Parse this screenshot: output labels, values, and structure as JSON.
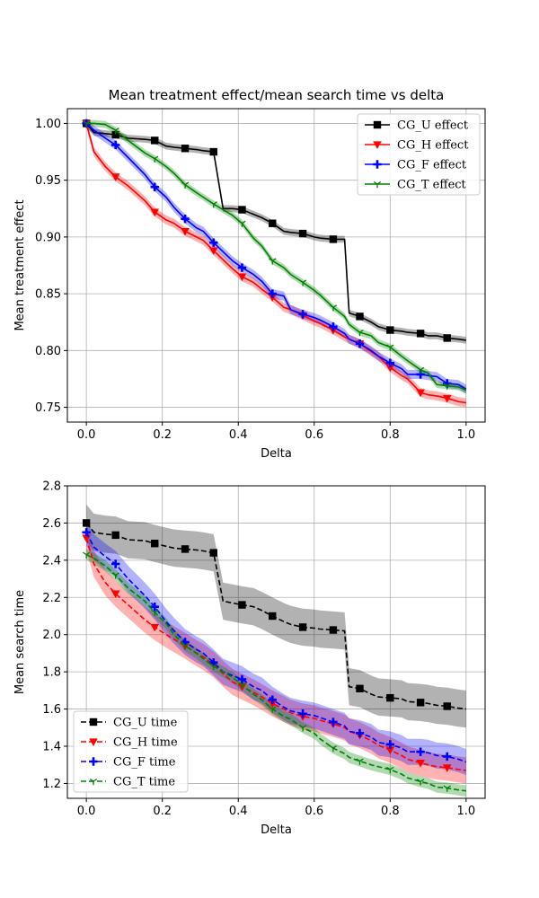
{
  "chart_data": [
    {
      "type": "line",
      "title": "Mean treatment effect/mean search time vs delta",
      "xlabel": "Delta",
      "ylabel": "Mean treatment effect",
      "xlim": [
        -0.05,
        1.05
      ],
      "ylim": [
        0.737,
        1.013
      ],
      "xticks": [
        "0.0",
        "0.2",
        "0.4",
        "0.6",
        "0.8",
        "1.0"
      ],
      "yticks": [
        "0.75",
        "0.80",
        "0.85",
        "0.90",
        "0.95",
        "1.00"
      ],
      "grid": true,
      "legend_position": "top-right",
      "line_style": "solid",
      "series": [
        {
          "name": "CG_U effect",
          "color": "#000000",
          "marker": "square",
          "x": [
            0,
            0.02,
            0.05,
            0.077,
            0.11,
            0.154,
            0.18,
            0.21,
            0.231,
            0.26,
            0.29,
            0.308,
            0.335,
            0.36,
            0.385,
            0.41,
            0.44,
            0.462,
            0.49,
            0.52,
            0.538,
            0.57,
            0.6,
            0.615,
            0.65,
            0.68,
            0.692,
            0.72,
            0.75,
            0.769,
            0.8,
            0.83,
            0.846,
            0.88,
            0.9,
            0.923,
            0.95,
            0.98,
            1.0
          ],
          "y": [
            1.0,
            0.992,
            0.991,
            0.99,
            0.987,
            0.986,
            0.985,
            0.98,
            0.979,
            0.978,
            0.977,
            0.976,
            0.975,
            0.925,
            0.925,
            0.924,
            0.92,
            0.917,
            0.912,
            0.905,
            0.904,
            0.903,
            0.9,
            0.899,
            0.898,
            0.898,
            0.833,
            0.83,
            0.825,
            0.821,
            0.818,
            0.817,
            0.816,
            0.815,
            0.813,
            0.813,
            0.811,
            0.81,
            0.809
          ],
          "band": 0.003
        },
        {
          "name": "CG_H effect",
          "color": "#ff0000",
          "marker": "triangle-down",
          "x": [
            0,
            0.02,
            0.05,
            0.077,
            0.11,
            0.154,
            0.18,
            0.21,
            0.231,
            0.26,
            0.29,
            0.308,
            0.335,
            0.36,
            0.385,
            0.41,
            0.44,
            0.462,
            0.49,
            0.52,
            0.538,
            0.57,
            0.6,
            0.615,
            0.65,
            0.68,
            0.692,
            0.72,
            0.75,
            0.769,
            0.8,
            0.83,
            0.846,
            0.88,
            0.9,
            0.923,
            0.95,
            0.98,
            1.0
          ],
          "y": [
            1.0,
            0.975,
            0.962,
            0.953,
            0.945,
            0.932,
            0.922,
            0.915,
            0.912,
            0.905,
            0.9,
            0.897,
            0.888,
            0.88,
            0.872,
            0.865,
            0.86,
            0.854,
            0.847,
            0.838,
            0.836,
            0.831,
            0.826,
            0.824,
            0.818,
            0.812,
            0.81,
            0.806,
            0.799,
            0.795,
            0.785,
            0.778,
            0.775,
            0.763,
            0.761,
            0.76,
            0.758,
            0.755,
            0.754
          ],
          "band": 0.004
        },
        {
          "name": "CG_F effect",
          "color": "#0000ff",
          "marker": "plus",
          "x": [
            0,
            0.02,
            0.05,
            0.077,
            0.11,
            0.154,
            0.18,
            0.21,
            0.231,
            0.26,
            0.29,
            0.308,
            0.335,
            0.36,
            0.385,
            0.41,
            0.44,
            0.462,
            0.49,
            0.52,
            0.538,
            0.57,
            0.6,
            0.615,
            0.65,
            0.68,
            0.692,
            0.72,
            0.75,
            0.769,
            0.8,
            0.83,
            0.846,
            0.88,
            0.9,
            0.923,
            0.95,
            0.98,
            1.0
          ],
          "y": [
            1.0,
            0.994,
            0.987,
            0.981,
            0.97,
            0.955,
            0.944,
            0.935,
            0.926,
            0.916,
            0.908,
            0.905,
            0.895,
            0.887,
            0.879,
            0.873,
            0.867,
            0.861,
            0.85,
            0.848,
            0.836,
            0.832,
            0.829,
            0.827,
            0.821,
            0.815,
            0.81,
            0.806,
            0.8,
            0.795,
            0.789,
            0.784,
            0.779,
            0.779,
            0.778,
            0.777,
            0.771,
            0.77,
            0.766
          ],
          "band": 0.004
        },
        {
          "name": "CG_T effect",
          "color": "#008000",
          "marker": "tri-down",
          "x": [
            0,
            0.02,
            0.05,
            0.077,
            0.11,
            0.154,
            0.18,
            0.21,
            0.231,
            0.26,
            0.29,
            0.308,
            0.335,
            0.36,
            0.385,
            0.41,
            0.44,
            0.462,
            0.49,
            0.52,
            0.538,
            0.57,
            0.6,
            0.615,
            0.65,
            0.68,
            0.692,
            0.72,
            0.75,
            0.769,
            0.8,
            0.83,
            0.846,
            0.88,
            0.9,
            0.923,
            0.95,
            0.98,
            1.0
          ],
          "y": [
            1.0,
            1.0,
            0.999,
            0.994,
            0.985,
            0.974,
            0.969,
            0.962,
            0.956,
            0.946,
            0.939,
            0.935,
            0.929,
            0.924,
            0.919,
            0.912,
            0.899,
            0.892,
            0.879,
            0.873,
            0.867,
            0.86,
            0.853,
            0.849,
            0.838,
            0.83,
            0.823,
            0.816,
            0.813,
            0.807,
            0.803,
            0.795,
            0.791,
            0.783,
            0.78,
            0.77,
            0.769,
            0.768,
            0.765
          ],
          "band": 0.003
        }
      ]
    },
    {
      "type": "line",
      "title": "",
      "xlabel": "Delta",
      "ylabel": "Mean search time",
      "xlim": [
        -0.05,
        1.05
      ],
      "ylim": [
        1.12,
        2.8
      ],
      "xticks": [
        "0.0",
        "0.2",
        "0.4",
        "0.6",
        "0.8",
        "1.0"
      ],
      "yticks": [
        "1.2",
        "1.4",
        "1.6",
        "1.8",
        "2.0",
        "2.2",
        "2.4",
        "2.6",
        "2.8"
      ],
      "grid": true,
      "legend_position": "bottom-left",
      "line_style": "dashed",
      "series": [
        {
          "name": "CG_U time",
          "color": "#000000",
          "marker": "square",
          "x": [
            0,
            0.02,
            0.05,
            0.077,
            0.11,
            0.154,
            0.18,
            0.21,
            0.231,
            0.26,
            0.29,
            0.308,
            0.335,
            0.36,
            0.385,
            0.41,
            0.44,
            0.462,
            0.49,
            0.52,
            0.538,
            0.57,
            0.6,
            0.615,
            0.65,
            0.68,
            0.692,
            0.72,
            0.75,
            0.769,
            0.8,
            0.83,
            0.846,
            0.88,
            0.9,
            0.923,
            0.95,
            0.98,
            1.0
          ],
          "y": [
            2.6,
            2.55,
            2.54,
            2.535,
            2.51,
            2.505,
            2.49,
            2.475,
            2.465,
            2.46,
            2.455,
            2.45,
            2.44,
            2.18,
            2.17,
            2.16,
            2.15,
            2.13,
            2.1,
            2.07,
            2.055,
            2.04,
            2.035,
            2.03,
            2.025,
            2.02,
            1.72,
            1.71,
            1.68,
            1.665,
            1.66,
            1.655,
            1.64,
            1.635,
            1.63,
            1.62,
            1.615,
            1.605,
            1.6
          ],
          "band": 0.1
        },
        {
          "name": "CG_H time",
          "color": "#ff0000",
          "marker": "triangle-down",
          "x": [
            0,
            0.02,
            0.05,
            0.077,
            0.11,
            0.154,
            0.18,
            0.21,
            0.231,
            0.26,
            0.29,
            0.308,
            0.335,
            0.36,
            0.385,
            0.41,
            0.44,
            0.462,
            0.49,
            0.52,
            0.538,
            0.57,
            0.6,
            0.615,
            0.65,
            0.68,
            0.692,
            0.72,
            0.75,
            0.769,
            0.8,
            0.83,
            0.846,
            0.88,
            0.9,
            0.923,
            0.95,
            0.98,
            1.0
          ],
          "y": [
            2.52,
            2.38,
            2.28,
            2.22,
            2.16,
            2.08,
            2.04,
            2.0,
            1.975,
            1.94,
            1.9,
            1.88,
            1.84,
            1.79,
            1.745,
            1.72,
            1.69,
            1.665,
            1.63,
            1.6,
            1.58,
            1.56,
            1.55,
            1.54,
            1.52,
            1.5,
            1.48,
            1.46,
            1.43,
            1.405,
            1.38,
            1.35,
            1.33,
            1.31,
            1.3,
            1.29,
            1.285,
            1.275,
            1.27
          ],
          "band": 0.07
        },
        {
          "name": "CG_F time",
          "color": "#0000ff",
          "marker": "plus",
          "x": [
            0,
            0.02,
            0.05,
            0.077,
            0.11,
            0.154,
            0.18,
            0.21,
            0.231,
            0.26,
            0.29,
            0.308,
            0.335,
            0.36,
            0.385,
            0.41,
            0.44,
            0.462,
            0.49,
            0.52,
            0.538,
            0.57,
            0.6,
            0.615,
            0.65,
            0.68,
            0.692,
            0.72,
            0.75,
            0.769,
            0.8,
            0.83,
            0.846,
            0.88,
            0.9,
            0.923,
            0.95,
            0.98,
            1.0
          ],
          "y": [
            2.55,
            2.47,
            2.42,
            2.38,
            2.3,
            2.21,
            2.15,
            2.07,
            2.02,
            1.96,
            1.92,
            1.9,
            1.85,
            1.8,
            1.78,
            1.76,
            1.72,
            1.7,
            1.65,
            1.61,
            1.59,
            1.575,
            1.565,
            1.555,
            1.53,
            1.51,
            1.48,
            1.47,
            1.45,
            1.42,
            1.41,
            1.39,
            1.37,
            1.37,
            1.365,
            1.35,
            1.345,
            1.33,
            1.315
          ],
          "band": 0.07
        },
        {
          "name": "CG_T time",
          "color": "#008000",
          "marker": "tri-down",
          "x": [
            0,
            0.02,
            0.05,
            0.077,
            0.11,
            0.154,
            0.18,
            0.21,
            0.231,
            0.26,
            0.29,
            0.308,
            0.335,
            0.36,
            0.385,
            0.41,
            0.44,
            0.462,
            0.49,
            0.52,
            0.538,
            0.57,
            0.6,
            0.615,
            0.65,
            0.68,
            0.692,
            0.72,
            0.75,
            0.769,
            0.8,
            0.83,
            0.846,
            0.88,
            0.9,
            0.923,
            0.95,
            0.98,
            1.0
          ],
          "y": [
            2.43,
            2.41,
            2.37,
            2.32,
            2.25,
            2.18,
            2.12,
            2.06,
            2.0,
            1.94,
            1.9,
            1.87,
            1.83,
            1.8,
            1.77,
            1.73,
            1.68,
            1.65,
            1.6,
            1.56,
            1.545,
            1.5,
            1.47,
            1.44,
            1.39,
            1.36,
            1.34,
            1.32,
            1.3,
            1.29,
            1.275,
            1.25,
            1.23,
            1.21,
            1.2,
            1.18,
            1.175,
            1.165,
            1.16
          ],
          "band": 0.03
        }
      ]
    }
  ]
}
